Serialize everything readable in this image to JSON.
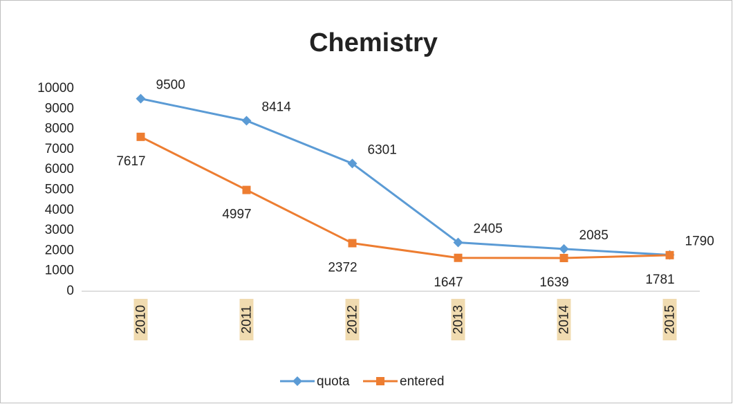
{
  "chart_data": {
    "type": "line",
    "title": "Chemistry",
    "categories": [
      "2010",
      "2011",
      "2012",
      "2013",
      "2014",
      "2015"
    ],
    "series": [
      {
        "name": "quota",
        "color": "#5b9bd5",
        "values": [
          9500,
          8414,
          6301,
          2405,
          2085,
          1790
        ]
      },
      {
        "name": "entered",
        "color": "#ed7d31",
        "values": [
          7617,
          4997,
          2372,
          1647,
          1639,
          1781
        ]
      }
    ],
    "ylim": [
      0,
      10000
    ],
    "yticks": [
      0,
      1000,
      2000,
      3000,
      4000,
      5000,
      6000,
      7000,
      8000,
      9000,
      10000
    ],
    "grid": false,
    "legend": "bottom"
  }
}
